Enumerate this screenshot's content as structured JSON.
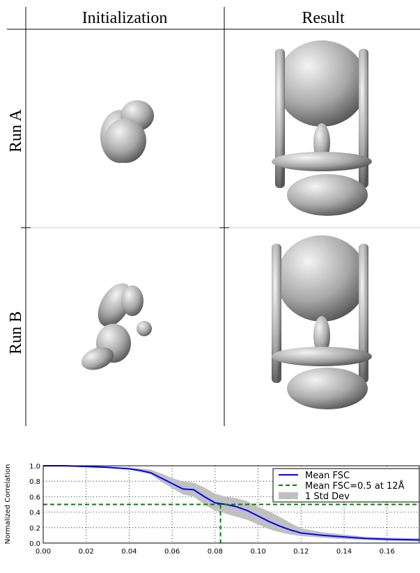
{
  "grid": {
    "columns": [
      "Initialization",
      "Result"
    ],
    "rows": [
      "Run A",
      "Run B"
    ]
  },
  "chart_data": {
    "type": "line",
    "ylabel": "Normalized Correlation",
    "xlim": [
      0,
      0.175
    ],
    "ylim": [
      0,
      1
    ],
    "xticks": [
      {
        "value": 0,
        "label": "0.00"
      },
      {
        "value": 0.02,
        "label": "0.02"
      },
      {
        "value": 0.04,
        "label": "0.04"
      },
      {
        "value": 0.06,
        "label": "0.06"
      },
      {
        "value": 0.08,
        "label": "0.08"
      },
      {
        "value": 0.1,
        "label": "0.10"
      },
      {
        "value": 0.12,
        "label": "0.12"
      },
      {
        "value": 0.14,
        "label": "0.14"
      },
      {
        "value": 0.16,
        "label": "0.16"
      }
    ],
    "yticks": [
      {
        "value": 0,
        "label": "0.0"
      },
      {
        "value": 0.2,
        "label": "0.2"
      },
      {
        "value": 0.4,
        "label": "0.4"
      },
      {
        "value": 0.6,
        "label": "0.6"
      },
      {
        "value": 0.8,
        "label": "0.8"
      },
      {
        "value": 1,
        "label": "1.0"
      }
    ],
    "grid": true,
    "legend": "upper right",
    "series": [
      {
        "name": "Mean FSC",
        "color": "#0000ff",
        "style": "solid",
        "x": [
          0,
          0.01,
          0.02,
          0.03,
          0.04,
          0.045,
          0.05,
          0.055,
          0.06,
          0.065,
          0.07,
          0.075,
          0.08,
          0.085,
          0.09,
          0.095,
          0.1,
          0.105,
          0.11,
          0.115,
          0.12,
          0.13,
          0.14,
          0.15,
          0.16,
          0.175
        ],
        "values": [
          1.0,
          1.0,
          0.99,
          0.98,
          0.96,
          0.94,
          0.91,
          0.84,
          0.77,
          0.7,
          0.69,
          0.6,
          0.52,
          0.5,
          0.47,
          0.42,
          0.35,
          0.28,
          0.22,
          0.17,
          0.13,
          0.1,
          0.08,
          0.06,
          0.05,
          0.04
        ]
      },
      {
        "name": "Mean FSC=0.5 at 12Å",
        "color": "#008000",
        "style": "dashed",
        "x": [
          0,
          0.175,
          null,
          0.0825,
          0.0825
        ],
        "values": [
          0.5,
          0.5,
          null,
          0.5,
          0
        ]
      },
      {
        "name": "1 Std Dev",
        "color": "#c0c0c0",
        "style": "band",
        "x": [
          0,
          0.02,
          0.04,
          0.05,
          0.055,
          0.06,
          0.065,
          0.07,
          0.075,
          0.08,
          0.085,
          0.09,
          0.095,
          0.1,
          0.105,
          0.11,
          0.115,
          0.12,
          0.13,
          0.14,
          0.15,
          0.16,
          0.175
        ],
        "upper": [
          1.0,
          1.0,
          0.98,
          0.95,
          0.9,
          0.84,
          0.8,
          0.78,
          0.72,
          0.64,
          0.6,
          0.58,
          0.54,
          0.47,
          0.41,
          0.34,
          0.26,
          0.19,
          0.14,
          0.11,
          0.08,
          0.07,
          0.06
        ],
        "lower": [
          1.0,
          0.99,
          0.95,
          0.89,
          0.79,
          0.71,
          0.63,
          0.6,
          0.5,
          0.42,
          0.38,
          0.34,
          0.3,
          0.24,
          0.18,
          0.14,
          0.11,
          0.09,
          0.07,
          0.05,
          0.04,
          0.03,
          0.02
        ]
      }
    ]
  }
}
